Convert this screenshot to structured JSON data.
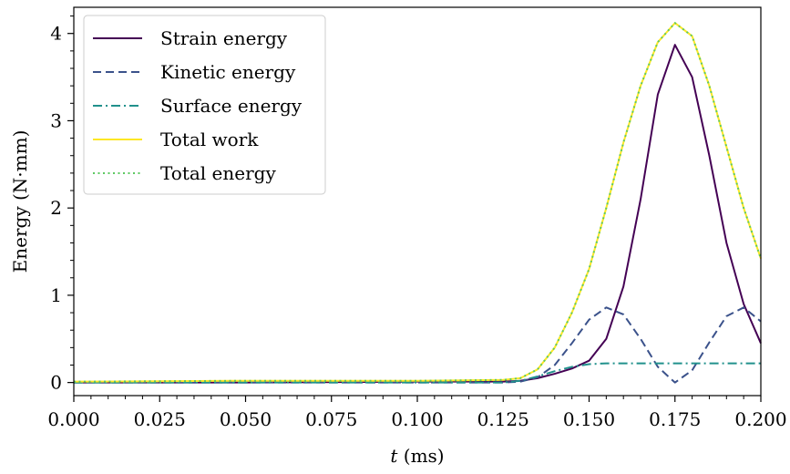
{
  "chart_data": {
    "type": "line",
    "xlabel": "t (ms)",
    "xlabel_parts": {
      "symbol": "t",
      "unit": " (ms)"
    },
    "ylabel": "Energy (N·mm)",
    "xlim": [
      0.0,
      0.2
    ],
    "ylim": [
      -0.15,
      4.3
    ],
    "xticks": [
      0.0,
      0.025,
      0.05,
      0.075,
      0.1,
      0.125,
      0.15,
      0.175,
      0.2
    ],
    "xtick_labels": [
      "0.000",
      "0.025",
      "0.050",
      "0.075",
      "0.100",
      "0.125",
      "0.150",
      "0.175",
      "0.200"
    ],
    "yticks": [
      0,
      1,
      2,
      3,
      4
    ],
    "ytick_labels": [
      "0",
      "1",
      "2",
      "3",
      "4"
    ],
    "grid": false,
    "legend_position": "top-left",
    "series": [
      {
        "name": "Strain energy",
        "color": "#440154",
        "style": "solid",
        "x": [
          0.0,
          0.05,
          0.1,
          0.125,
          0.13,
          0.135,
          0.14,
          0.145,
          0.15,
          0.155,
          0.16,
          0.165,
          0.17,
          0.175,
          0.18,
          0.185,
          0.19,
          0.195,
          0.2
        ],
        "y": [
          0.0,
          0.0,
          0.01,
          0.01,
          0.02,
          0.05,
          0.1,
          0.16,
          0.25,
          0.5,
          1.1,
          2.1,
          3.3,
          3.87,
          3.5,
          2.6,
          1.6,
          0.9,
          0.45
        ]
      },
      {
        "name": "Kinetic energy",
        "color": "#3b528b",
        "style": "dashed",
        "x": [
          0.0,
          0.05,
          0.1,
          0.125,
          0.13,
          0.135,
          0.14,
          0.145,
          0.15,
          0.155,
          0.16,
          0.165,
          0.17,
          0.175,
          0.18,
          0.185,
          0.19,
          0.195,
          0.2
        ],
        "y": [
          0.0,
          0.0,
          0.0,
          0.0,
          0.01,
          0.06,
          0.2,
          0.45,
          0.72,
          0.86,
          0.78,
          0.5,
          0.18,
          0.0,
          0.14,
          0.46,
          0.76,
          0.86,
          0.7
        ]
      },
      {
        "name": "Surface energy",
        "color": "#21918c",
        "style": "dashdot",
        "x": [
          0.0,
          0.05,
          0.1,
          0.125,
          0.13,
          0.135,
          0.14,
          0.145,
          0.15,
          0.155,
          0.175,
          0.2
        ],
        "y": [
          0.0,
          0.0,
          0.0,
          0.0,
          0.02,
          0.07,
          0.13,
          0.18,
          0.21,
          0.22,
          0.22,
          0.22
        ]
      },
      {
        "name": "Total work",
        "color": "#fde725",
        "style": "solid",
        "x": [
          0.0,
          0.05,
          0.1,
          0.125,
          0.13,
          0.135,
          0.14,
          0.145,
          0.15,
          0.155,
          0.16,
          0.165,
          0.17,
          0.175,
          0.18,
          0.185,
          0.19,
          0.195,
          0.2
        ],
        "y": [
          0.01,
          0.02,
          0.02,
          0.03,
          0.05,
          0.15,
          0.4,
          0.8,
          1.3,
          2.0,
          2.75,
          3.4,
          3.9,
          4.12,
          3.97,
          3.4,
          2.7,
          2.0,
          1.42
        ]
      },
      {
        "name": "Total energy",
        "color": "#5ec962",
        "style": "dotted",
        "x": [
          0.0,
          0.05,
          0.1,
          0.125,
          0.13,
          0.135,
          0.14,
          0.145,
          0.15,
          0.155,
          0.16,
          0.165,
          0.17,
          0.175,
          0.18,
          0.185,
          0.19,
          0.195,
          0.2
        ],
        "y": [
          0.01,
          0.02,
          0.02,
          0.03,
          0.05,
          0.15,
          0.4,
          0.8,
          1.3,
          2.0,
          2.75,
          3.4,
          3.9,
          4.12,
          3.97,
          3.4,
          2.7,
          2.0,
          1.42
        ]
      }
    ]
  }
}
